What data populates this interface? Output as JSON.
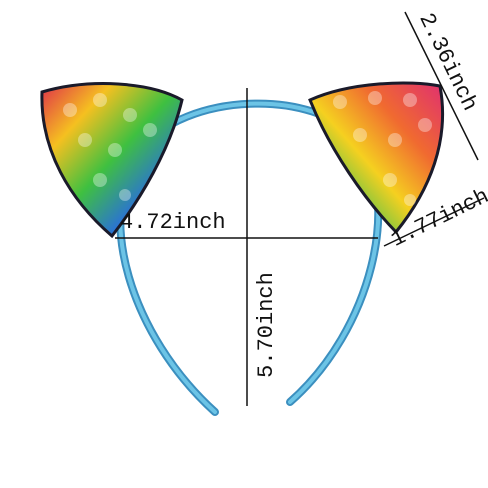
{
  "dimensions": {
    "width": "4.72inch",
    "height": "5.70inch",
    "ear_height": "2.36inch",
    "ear_width": "1.77inch"
  }
}
